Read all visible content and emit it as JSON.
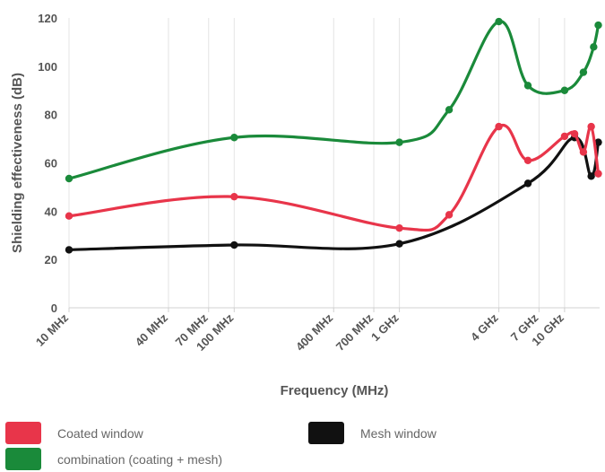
{
  "chart_data": {
    "type": "line",
    "xscale": "log",
    "xlabel": "Frequency (MHz)",
    "ylabel": "Shielding effectiveness (dB)",
    "ylim": [
      0,
      120
    ],
    "yticks": [
      0,
      20,
      40,
      60,
      80,
      100,
      120
    ],
    "xticks": [
      {
        "value": 10,
        "label": "10 MHz"
      },
      {
        "value": 40,
        "label": "40 MHz"
      },
      {
        "value": 70,
        "label": "70 MHz"
      },
      {
        "value": 100,
        "label": "100 MHz"
      },
      {
        "value": 400,
        "label": "400 MHz"
      },
      {
        "value": 700,
        "label": "700 MHz"
      },
      {
        "value": 1000,
        "label": "1 GHz"
      },
      {
        "value": 4000,
        "label": "4 GHz"
      },
      {
        "value": 7000,
        "label": "7 GHz"
      },
      {
        "value": 10000,
        "label": "10 GHz"
      }
    ],
    "grid": "vertical",
    "legend_position": "bottom",
    "series": [
      {
        "name": "combination (coating + mesh)",
        "color": "#1a8a3a",
        "x": [
          10,
          100,
          1000,
          2000,
          4000,
          6000,
          10000,
          13000,
          15000,
          16000
        ],
        "y": [
          53.5,
          70.5,
          68.5,
          82,
          118.5,
          92,
          90,
          97.5,
          108,
          117
        ]
      },
      {
        "name": "Coated window",
        "color": "#e8354a",
        "x": [
          10,
          100,
          1000,
          2000,
          4000,
          6000,
          10000,
          11500,
          13000,
          14500,
          16000
        ],
        "y": [
          38,
          46,
          33,
          38.5,
          75,
          61,
          71,
          72,
          64.5,
          75,
          55.5
        ]
      },
      {
        "name": "Mesh window",
        "color": "#111111",
        "x": [
          10,
          100,
          1000,
          6000,
          11500,
          14500,
          16000
        ],
        "y": [
          24,
          26,
          26.5,
          51.5,
          70.5,
          54.5,
          68.5
        ]
      }
    ]
  },
  "legend": {
    "coated": {
      "label": "Coated window",
      "color": "#e8354a"
    },
    "mesh": {
      "label": "Mesh window",
      "color": "#111111"
    },
    "combination": {
      "label": "combination (coating + mesh)",
      "color": "#1a8a3a"
    }
  }
}
